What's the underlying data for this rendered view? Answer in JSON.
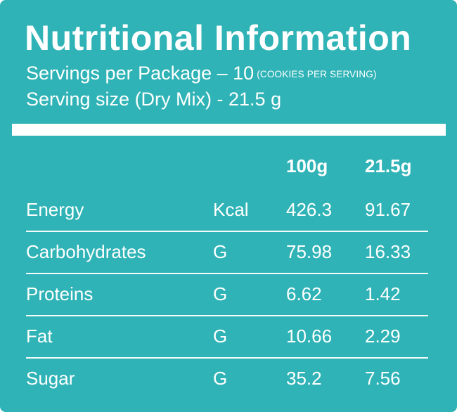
{
  "label": {
    "title": "Nutritional Information",
    "servings_text": "Servings per Package – 10",
    "servings_note": "(COOKIES PER SERVING)",
    "serving_size": "Serving size (Dry Mix) - 21.5 g"
  },
  "table": {
    "headers": [
      "100g",
      "21.5g"
    ],
    "rows": [
      {
        "name": "Energy",
        "unit": "Kcal",
        "per100": "426.3",
        "perServing": "91.67"
      },
      {
        "name": "Carbohydrates",
        "unit": "G",
        "per100": "75.98",
        "perServing": "16.33"
      },
      {
        "name": "Proteins",
        "unit": "G",
        "per100": "6.62",
        "perServing": "1.42"
      },
      {
        "name": "Fat",
        "unit": "G",
        "per100": "10.66",
        "perServing": "2.29"
      },
      {
        "name": "Sugar",
        "unit": "G",
        "per100": "35.2",
        "perServing": "7.56"
      }
    ]
  },
  "colors": {
    "panel": "#2fb3b6",
    "text": "#ffffff"
  }
}
